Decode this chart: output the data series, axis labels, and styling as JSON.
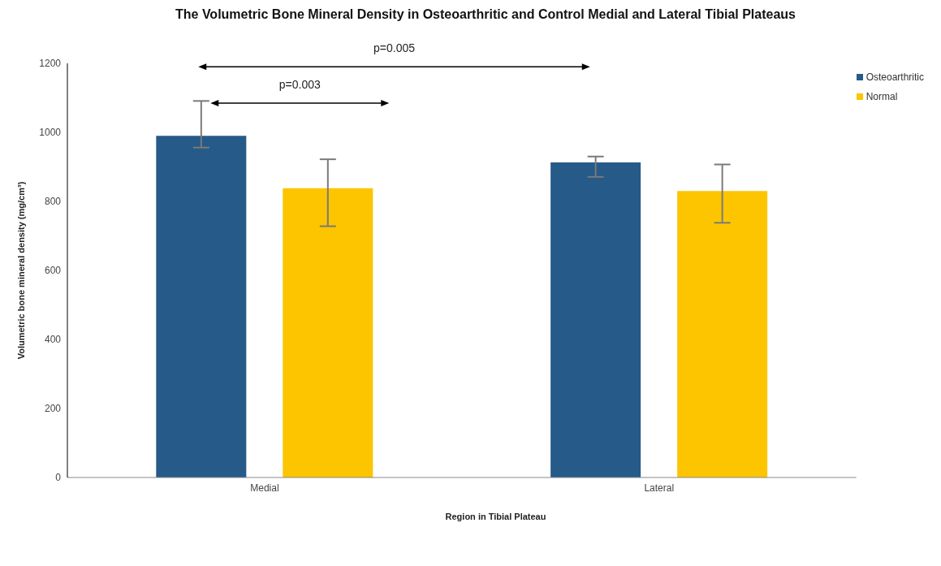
{
  "chart_data": {
    "type": "bar",
    "title": "The Volumetric Bone Mineral Density in Osteoarthritic and Control Medial and Lateral Tibial Plateaus",
    "xlabel": "Region in Tibial Plateau",
    "ylabel": "Volumetric bone mineral density (mg/cm³)",
    "categories": [
      "Medial",
      "Lateral"
    ],
    "series": [
      {
        "name": "Osteoarthritic",
        "color": "#265a88",
        "values": [
          990,
          913
        ],
        "errors": [
          [
            956,
            1091
          ],
          [
            871,
            930
          ]
        ]
      },
      {
        "name": "Normal",
        "color": "#fcc500",
        "values": [
          838,
          830
        ],
        "errors": [
          [
            728,
            922
          ],
          [
            738,
            907
          ]
        ]
      }
    ],
    "ylim": [
      0,
      1200
    ],
    "yticks": [
      0,
      200,
      400,
      600,
      800,
      1000,
      1200
    ],
    "grid": false,
    "legend": "top right",
    "annotations": [
      "p=0.005",
      "p=0.003"
    ]
  }
}
